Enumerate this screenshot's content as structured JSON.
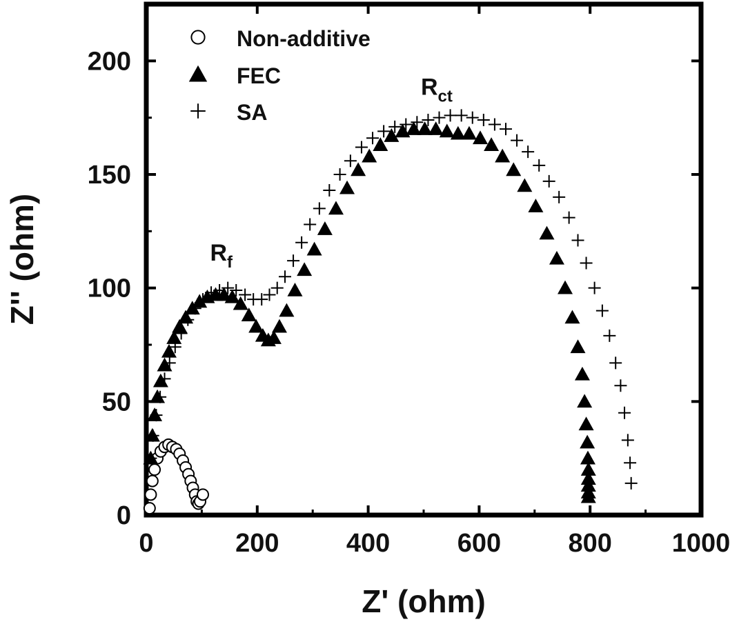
{
  "chart_data": {
    "type": "scatter",
    "xlabel": "Z' (ohm)",
    "ylabel": "Z'' (ohm)",
    "xlim": [
      0,
      1000
    ],
    "ylim": [
      0,
      225
    ],
    "xticks": [
      0,
      200,
      400,
      600,
      800,
      1000
    ],
    "yticks": [
      0,
      50,
      100,
      150,
      200
    ],
    "x_tick_labels": [
      "0",
      "200",
      "400",
      "600",
      "800",
      "1000"
    ],
    "y_tick_labels": [
      "0",
      "50",
      "100",
      "150",
      "200"
    ],
    "grid": false,
    "legend_position": "top-left",
    "annotations": [
      {
        "text": "R",
        "sub": "f",
        "x": 115,
        "y": 112
      },
      {
        "text": "R",
        "sub": "ct",
        "x": 495,
        "y": 185
      }
    ],
    "series": [
      {
        "name": "Non-additive",
        "marker": "open-circle",
        "x": [
          6,
          8,
          11,
          15,
          20,
          26,
          33,
          40,
          47,
          54,
          60,
          66,
          71,
          76,
          80,
          84,
          88,
          91,
          94,
          97,
          102
        ],
        "y": [
          3,
          9,
          15,
          20,
          25,
          28,
          30,
          31,
          30,
          29,
          27,
          24,
          21,
          18,
          15,
          12,
          9,
          6,
          5,
          6,
          9
        ]
      },
      {
        "name": "FEC",
        "marker": "filled-triangle",
        "x": [
          8,
          11,
          15,
          20,
          26,
          33,
          41,
          50,
          60,
          71,
          83,
          96,
          110,
          125,
          140,
          155,
          170,
          185,
          198,
          210,
          220,
          230,
          240,
          253,
          268,
          285,
          303,
          322,
          342,
          362,
          382,
          402,
          422,
          442,
          462,
          482,
          502,
          522,
          542,
          562,
          582,
          602,
          622,
          642,
          662,
          682,
          702,
          722,
          740,
          755,
          768,
          778,
          786,
          790,
          793,
          795,
          796,
          797,
          797,
          797,
          797,
          797
        ],
        "y": [
          25,
          35,
          44,
          52,
          59,
          66,
          72,
          78,
          83,
          87,
          91,
          94,
          96,
          97,
          97,
          96,
          93,
          88,
          83,
          79,
          77,
          78,
          83,
          90,
          99,
          108,
          117,
          126,
          135,
          144,
          152,
          158,
          163,
          167,
          169,
          170,
          170,
          170,
          169,
          168,
          168,
          166,
          163,
          158,
          152,
          145,
          136,
          124,
          113,
          100,
          87,
          74,
          62,
          50,
          40,
          32,
          25,
          20,
          16,
          13,
          10,
          8
        ]
      },
      {
        "name": "SA",
        "marker": "plus",
        "x": [
          8,
          12,
          18,
          25,
          33,
          42,
          52,
          63,
          75,
          88,
          102,
          117,
          132,
          147,
          162,
          178,
          193,
          208,
          222,
          236,
          250,
          265,
          280,
          295,
          312,
          330,
          349,
          368,
          388,
          408,
          428,
          448,
          468,
          488,
          508,
          528,
          548,
          568,
          588,
          608,
          628,
          648,
          668,
          688,
          708,
          726,
          744,
          762,
          778,
          793,
          808,
          822,
          835,
          846,
          855,
          862,
          868,
          872,
          874
        ],
        "y": [
          25,
          35,
          44,
          52,
          60,
          67,
          74,
          80,
          86,
          91,
          95,
          98,
          99,
          100,
          99,
          97,
          95,
          95,
          97,
          100,
          105,
          112,
          120,
          128,
          135,
          143,
          150,
          156,
          162,
          166,
          169,
          171,
          172,
          173,
          174,
          175,
          176,
          176,
          175,
          174,
          172,
          170,
          165,
          160,
          154,
          147,
          140,
          131,
          121,
          111,
          100,
          90,
          79,
          67,
          57,
          45,
          33,
          23,
          14
        ]
      }
    ]
  }
}
